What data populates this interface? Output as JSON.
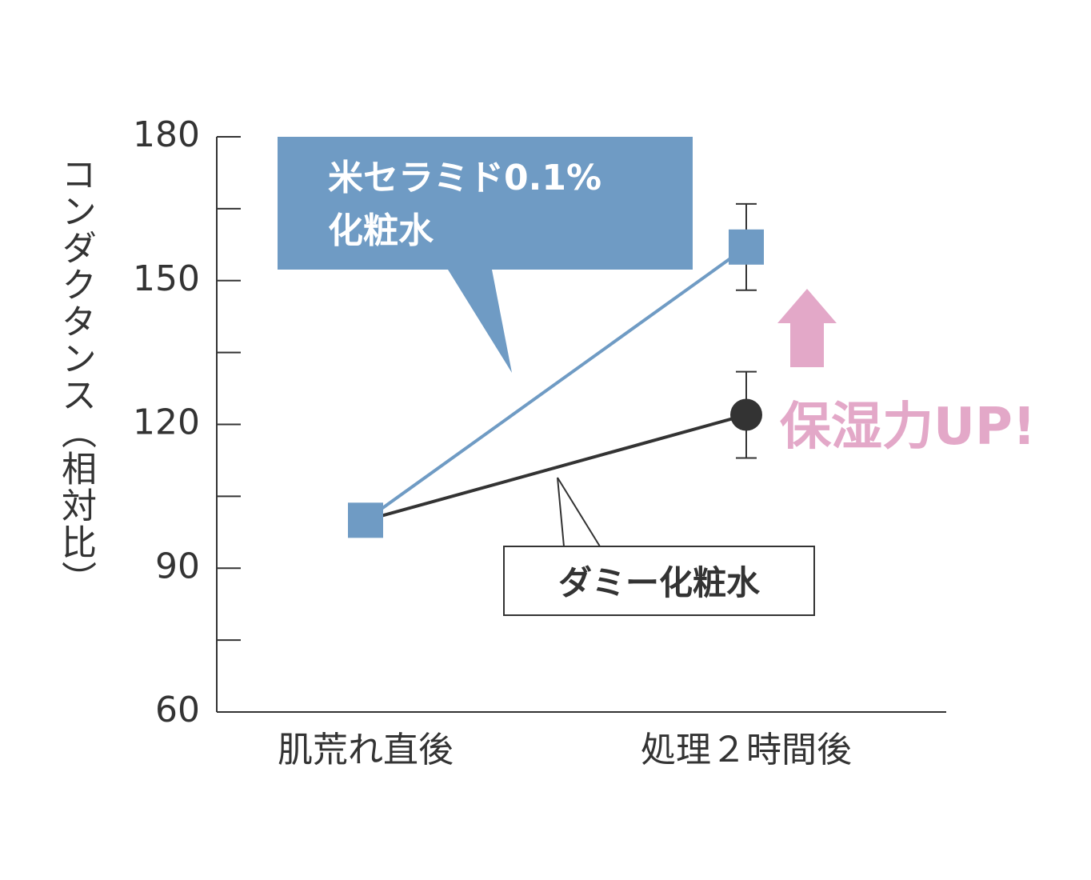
{
  "chart_data": {
    "type": "line",
    "ylabel": "コンダクタンス（相対比）",
    "categories": [
      "肌荒れ直後",
      "処理２時間後"
    ],
    "series": [
      {
        "name": "ダミー化粧水",
        "color": "#333333",
        "marker": "circle",
        "values": [
          100,
          122
        ],
        "errors": [
          null,
          9
        ]
      },
      {
        "name": "米セラミド0.1%\n化粧水",
        "color": "#6f9bc4",
        "marker": "square",
        "values": [
          100,
          157
        ],
        "errors": [
          null,
          9
        ]
      }
    ],
    "ylim": [
      60,
      180
    ],
    "yticks": [
      60,
      90,
      120,
      150,
      180
    ],
    "yminor_ticks": [
      75,
      105,
      135,
      165
    ],
    "annotations": [
      {
        "text": "保湿力UP!",
        "color": "#e3a8c8"
      }
    ]
  }
}
